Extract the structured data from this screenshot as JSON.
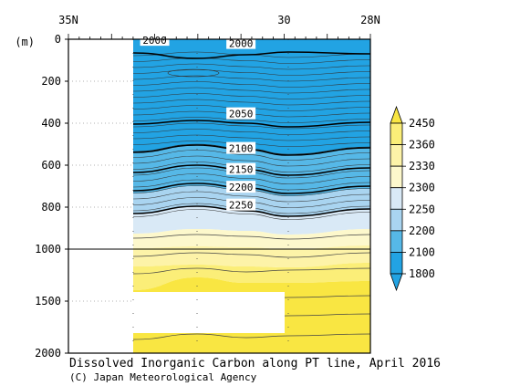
{
  "chart_data": {
    "type": "heatmap",
    "title": "Dissolved Inorganic Carbon along PT line, April 2016",
    "credit": "(C) Japan Meteorological Agency",
    "ylabel": "(m)",
    "x_ticks": [
      {
        "label": "35N",
        "lat": 35
      },
      {
        "label": "30",
        "lat": 30
      },
      {
        "label": "28N",
        "lat": 28
      }
    ],
    "xlim": [
      35,
      28
    ],
    "y_ticks": [
      0,
      200,
      400,
      600,
      800,
      1000,
      1500,
      2000
    ],
    "ylim": [
      0,
      2000
    ],
    "y_scale_break": 1000,
    "legend_levels": [
      "2450",
      "2360",
      "2330",
      "2300",
      "2250",
      "2200",
      "2100",
      "1800"
    ],
    "colors": {
      "above_2450": "#f9e642",
      "2360_2450": "#fbee78",
      "2330_2360": "#fdf3a8",
      "2300_2330": "#fdf8cc",
      "2250_2300": "#d9e9f6",
      "2200_2250": "#a9d4f0",
      "2100_2200": "#56b8e7",
      "1800_2100": "#22a3e3"
    },
    "contour_labels": [
      {
        "value": "2000",
        "lat": 31.0,
        "depth": 20
      },
      {
        "value": "2000",
        "lat": 33.0,
        "depth": 5
      },
      {
        "value": "2050",
        "lat": 31.0,
        "depth": 355
      },
      {
        "value": "2100",
        "lat": 31.0,
        "depth": 520
      },
      {
        "value": "2150",
        "lat": 31.0,
        "depth": 620
      },
      {
        "value": "2200",
        "lat": 31.0,
        "depth": 705
      },
      {
        "value": "2250",
        "lat": 31.0,
        "depth": 790
      }
    ],
    "grid": true
  }
}
